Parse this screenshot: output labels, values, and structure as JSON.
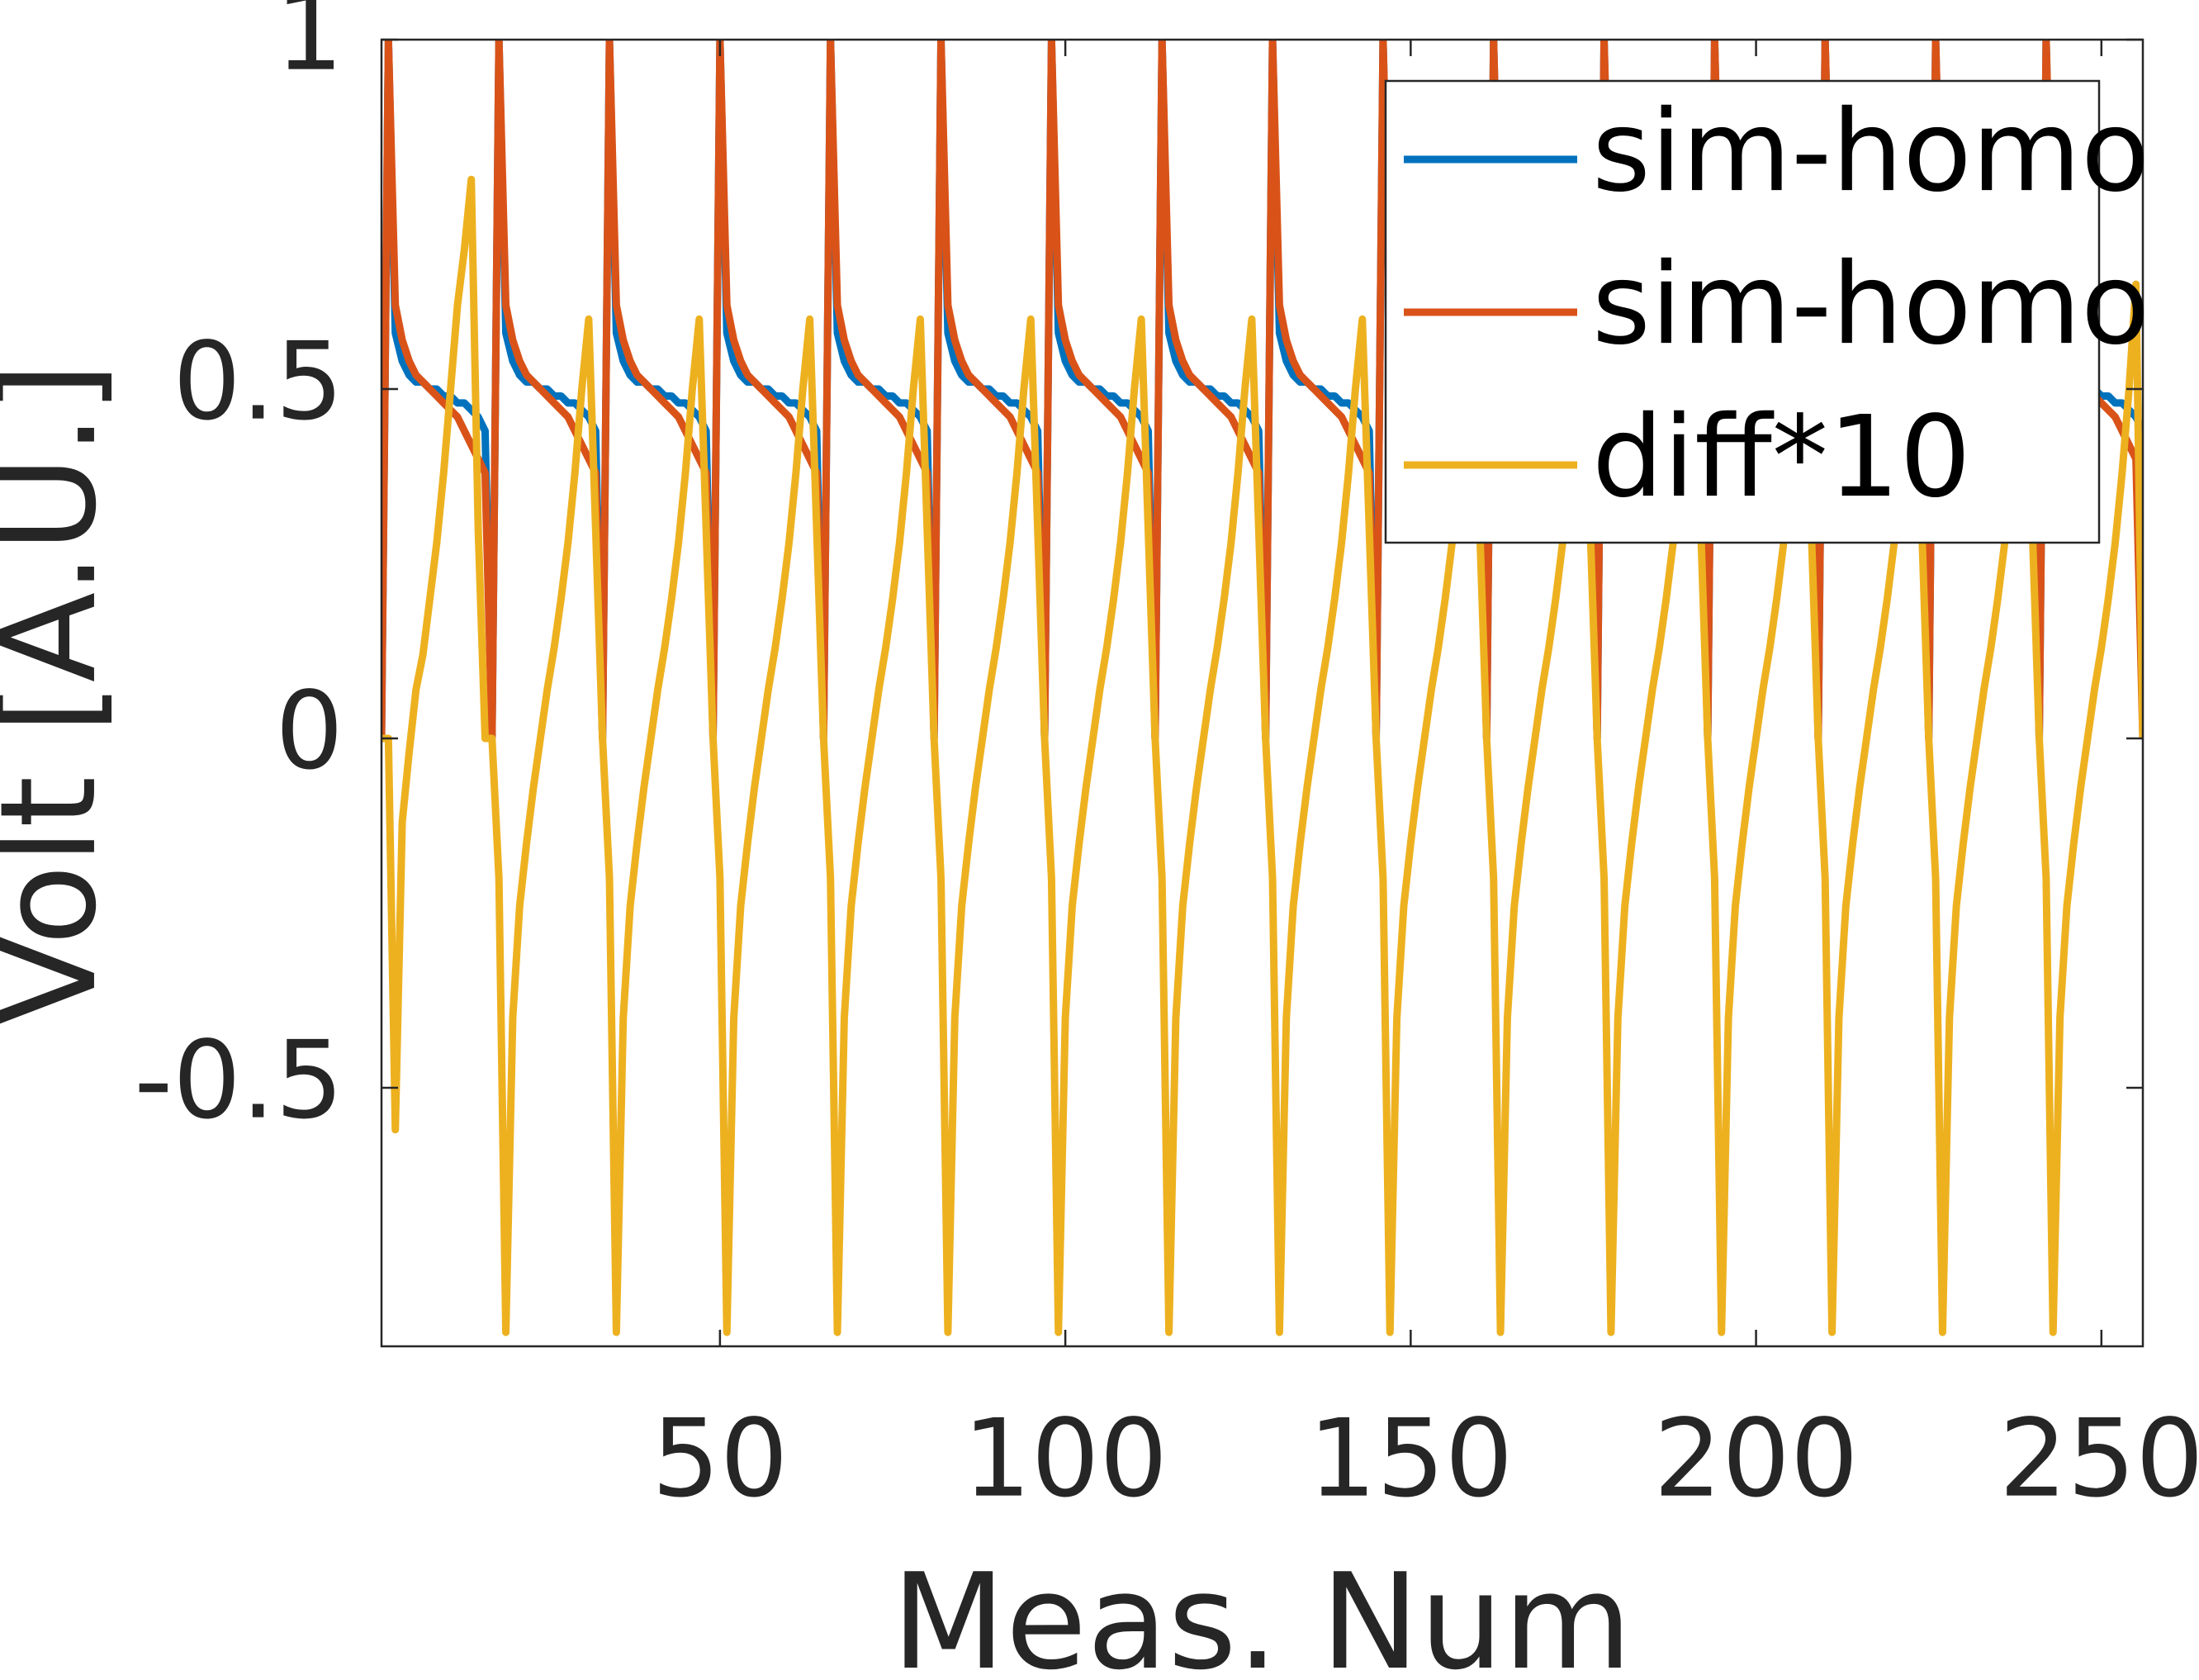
{
  "chart_data": {
    "type": "line",
    "xlabel": "Meas. Num",
    "ylabel": "Volt [A.U.]",
    "xlim": [
      1,
      256
    ],
    "ylim": [
      -0.87,
      1
    ],
    "xticks": [
      50,
      100,
      150,
      200,
      250
    ],
    "yticks": [
      -0.5,
      0,
      0.5,
      1
    ],
    "legend": "top-right",
    "x": [
      1,
      2,
      3,
      4,
      5,
      6,
      7,
      8,
      9,
      10,
      11,
      12,
      13,
      14,
      15,
      16,
      17,
      18,
      19,
      20,
      21,
      22,
      23,
      24,
      25,
      26,
      27,
      28,
      29,
      30,
      31,
      32,
      33,
      34,
      35,
      36,
      37,
      38,
      39,
      40,
      41,
      42,
      43,
      44,
      45,
      46,
      47,
      48,
      49,
      50,
      51,
      52,
      53,
      54,
      55,
      56,
      57,
      58,
      59,
      60,
      61,
      62,
      63,
      64,
      65,
      66,
      67,
      68,
      69,
      70,
      71,
      72,
      73,
      74,
      75,
      76,
      77,
      78,
      79,
      80,
      81,
      82,
      83,
      84,
      85,
      86,
      87,
      88,
      89,
      90,
      91,
      92,
      93,
      94,
      95,
      96,
      97,
      98,
      99,
      100,
      101,
      102,
      103,
      104,
      105,
      106,
      107,
      108,
      109,
      110,
      111,
      112,
      113,
      114,
      115,
      116,
      117,
      118,
      119,
      120,
      121,
      122,
      123,
      124,
      125,
      126,
      127,
      128,
      129,
      130,
      131,
      132,
      133,
      134,
      135,
      136,
      137,
      138,
      139,
      140,
      141,
      142,
      143,
      144,
      145,
      146,
      147,
      148,
      149,
      150,
      151,
      152,
      153,
      154,
      155,
      156,
      157,
      158,
      159,
      160,
      161,
      162,
      163,
      164,
      165,
      166,
      167,
      168,
      169,
      170,
      171,
      172,
      173,
      174,
      175,
      176,
      177,
      178,
      179,
      180,
      181,
      182,
      183,
      184,
      185,
      186,
      187,
      188,
      189,
      190,
      191,
      192,
      193,
      194,
      195,
      196,
      197,
      198,
      199,
      200,
      201,
      202,
      203,
      204,
      205,
      206,
      207,
      208,
      209,
      210,
      211,
      212,
      213,
      214,
      215,
      216,
      217,
      218,
      219,
      220,
      221,
      222,
      223,
      224,
      225,
      226,
      227,
      228,
      229,
      230,
      231,
      232,
      233,
      234,
      235,
      236,
      237,
      238,
      239,
      240,
      241,
      242,
      243,
      244,
      245,
      246,
      247,
      248,
      249,
      250,
      251,
      252,
      253,
      254,
      255,
      256
    ],
    "series": [
      {
        "name": "sim-homo",
        "color": "#0072BD",
        "values": [
          0,
          1,
          0.58,
          0.54,
          0.52,
          0.51,
          0.51,
          0.5,
          0.5,
          0.49,
          0.49,
          0.48,
          0.48,
          0.47,
          0.46,
          0.44,
          0,
          1,
          0.58,
          0.54,
          0.52,
          0.51,
          0.51,
          0.5,
          0.5,
          0.49,
          0.49,
          0.48,
          0.48,
          0.47,
          0.46,
          0.44,
          0,
          1,
          0.58,
          0.54,
          0.52,
          0.51,
          0.51,
          0.5,
          0.5,
          0.49,
          0.49,
          0.48,
          0.48,
          0.47,
          0.46,
          0.44,
          0,
          1,
          0.58,
          0.54,
          0.52,
          0.51,
          0.51,
          0.5,
          0.5,
          0.49,
          0.49,
          0.48,
          0.48,
          0.47,
          0.46,
          0.44,
          0,
          1,
          0.58,
          0.54,
          0.52,
          0.51,
          0.51,
          0.5,
          0.5,
          0.49,
          0.49,
          0.48,
          0.48,
          0.47,
          0.46,
          0.44,
          0,
          1,
          0.58,
          0.54,
          0.52,
          0.51,
          0.51,
          0.5,
          0.5,
          0.49,
          0.49,
          0.48,
          0.48,
          0.47,
          0.46,
          0.44,
          0,
          1,
          0.58,
          0.54,
          0.52,
          0.51,
          0.51,
          0.5,
          0.5,
          0.49,
          0.49,
          0.48,
          0.48,
          0.47,
          0.46,
          0.44,
          0,
          1,
          0.58,
          0.54,
          0.52,
          0.51,
          0.51,
          0.5,
          0.5,
          0.49,
          0.49,
          0.48,
          0.48,
          0.47,
          0.46,
          0.44,
          0,
          1,
          0.58,
          0.54,
          0.52,
          0.51,
          0.51,
          0.5,
          0.5,
          0.49,
          0.49,
          0.48,
          0.48,
          0.47,
          0.46,
          0.44,
          0,
          1,
          0.58,
          0.54,
          0.52,
          0.51,
          0.51,
          0.5,
          0.5,
          0.49,
          0.49,
          0.48,
          0.48,
          0.47,
          0.46,
          0.44,
          0,
          1,
          0.58,
          0.54,
          0.52,
          0.51,
          0.51,
          0.5,
          0.5,
          0.49,
          0.49,
          0.48,
          0.48,
          0.47,
          0.46,
          0.44,
          0,
          1,
          0.58,
          0.54,
          0.52,
          0.51,
          0.51,
          0.5,
          0.5,
          0.49,
          0.49,
          0.48,
          0.48,
          0.47,
          0.46,
          0.44,
          0,
          1,
          0.58,
          0.54,
          0.52,
          0.51,
          0.51,
          0.5,
          0.5,
          0.49,
          0.49,
          0.48,
          0.48,
          0.47,
          0.46,
          0.44,
          0,
          1,
          0.58,
          0.54,
          0.52,
          0.51,
          0.51,
          0.5,
          0.5,
          0.49,
          0.49,
          0.48,
          0.48,
          0.47,
          0.46,
          0.44,
          0,
          1,
          0.58,
          0.54,
          0.52,
          0.51,
          0.51,
          0.5,
          0.5,
          0.49,
          0.49,
          0.48,
          0.48,
          0.47,
          0.46,
          0.44,
          0,
          1,
          0.58,
          0.54,
          0.52,
          0.51,
          0.51,
          0.5,
          0.5,
          0.49,
          0.49,
          0.48,
          0.48,
          0.47,
          0.46,
          0.44
        ]
      },
      {
        "name": "sim-homo",
        "color": "#D95319",
        "values": [
          0,
          1,
          0.62,
          0.57,
          0.54,
          0.52,
          0.51,
          0.5,
          0.49,
          0.48,
          0.47,
          0.46,
          0.44,
          0.42,
          0.4,
          0.38,
          0,
          1,
          0.62,
          0.57,
          0.54,
          0.52,
          0.51,
          0.5,
          0.49,
          0.48,
          0.47,
          0.46,
          0.44,
          0.42,
          0.4,
          0.38,
          0,
          1,
          0.62,
          0.57,
          0.54,
          0.52,
          0.51,
          0.5,
          0.49,
          0.48,
          0.47,
          0.46,
          0.44,
          0.42,
          0.4,
          0.38,
          0,
          1,
          0.62,
          0.57,
          0.54,
          0.52,
          0.51,
          0.5,
          0.49,
          0.48,
          0.47,
          0.46,
          0.44,
          0.42,
          0.4,
          0.38,
          0,
          1,
          0.62,
          0.57,
          0.54,
          0.52,
          0.51,
          0.5,
          0.49,
          0.48,
          0.47,
          0.46,
          0.44,
          0.42,
          0.4,
          0.38,
          0,
          1,
          0.62,
          0.57,
          0.54,
          0.52,
          0.51,
          0.5,
          0.49,
          0.48,
          0.47,
          0.46,
          0.44,
          0.42,
          0.4,
          0.38,
          0,
          1,
          0.62,
          0.57,
          0.54,
          0.52,
          0.51,
          0.5,
          0.49,
          0.48,
          0.47,
          0.46,
          0.44,
          0.42,
          0.4,
          0.38,
          0,
          1,
          0.62,
          0.57,
          0.54,
          0.52,
          0.51,
          0.5,
          0.49,
          0.48,
          0.47,
          0.46,
          0.44,
          0.42,
          0.4,
          0.38,
          0,
          1,
          0.62,
          0.57,
          0.54,
          0.52,
          0.51,
          0.5,
          0.49,
          0.48,
          0.47,
          0.46,
          0.44,
          0.42,
          0.4,
          0.38,
          0,
          1,
          0.62,
          0.57,
          0.54,
          0.52,
          0.51,
          0.5,
          0.49,
          0.48,
          0.47,
          0.46,
          0.44,
          0.42,
          0.4,
          0.38,
          0,
          1,
          0.62,
          0.57,
          0.54,
          0.52,
          0.51,
          0.5,
          0.49,
          0.48,
          0.47,
          0.46,
          0.44,
          0.42,
          0.4,
          0.38,
          0,
          1,
          0.62,
          0.57,
          0.54,
          0.52,
          0.51,
          0.5,
          0.49,
          0.48,
          0.47,
          0.46,
          0.44,
          0.42,
          0.4,
          0.38,
          0,
          1,
          0.62,
          0.57,
          0.54,
          0.52,
          0.51,
          0.5,
          0.49,
          0.48,
          0.47,
          0.46,
          0.44,
          0.42,
          0.4,
          0.38,
          0,
          1,
          0.62,
          0.57,
          0.54,
          0.52,
          0.51,
          0.5,
          0.49,
          0.48,
          0.47,
          0.46,
          0.44,
          0.42,
          0.4,
          0.38,
          0,
          1,
          0.62,
          0.57,
          0.54,
          0.52,
          0.51,
          0.5,
          0.49,
          0.48,
          0.47,
          0.46,
          0.44,
          0.42,
          0.4,
          0.38,
          0,
          1,
          0.62,
          0.57,
          0.54,
          0.52,
          0.51,
          0.5,
          0.49,
          0.48,
          0.47,
          0.46,
          0.44,
          0.42,
          0.4,
          0
        ]
      },
      {
        "name": "diff*10",
        "color": "#EDB120",
        "values": [
          0,
          0,
          -0.56,
          -0.12,
          -0.02,
          0.07,
          0.12,
          0.2,
          0.28,
          0.38,
          0.5,
          0.62,
          0.7,
          0.8,
          0.3,
          0,
          0,
          -0.2,
          -0.85,
          -0.4,
          -0.24,
          -0.15,
          -0.07,
          0,
          0.07,
          0.13,
          0.2,
          0.28,
          0.38,
          0.5,
          0.6,
          0.3,
          0,
          -0.2,
          -0.85,
          -0.4,
          -0.24,
          -0.15,
          -0.07,
          0,
          0.07,
          0.13,
          0.2,
          0.28,
          0.38,
          0.5,
          0.6,
          0.3,
          0,
          -0.2,
          -0.85,
          -0.4,
          -0.24,
          -0.15,
          -0.07,
          0,
          0.07,
          0.13,
          0.2,
          0.28,
          0.38,
          0.5,
          0.6,
          0.3,
          0,
          -0.2,
          -0.85,
          -0.4,
          -0.24,
          -0.15,
          -0.07,
          0,
          0.07,
          0.13,
          0.2,
          0.28,
          0.38,
          0.5,
          0.6,
          0.3,
          0,
          -0.2,
          -0.85,
          -0.4,
          -0.24,
          -0.15,
          -0.07,
          0,
          0.07,
          0.13,
          0.2,
          0.28,
          0.38,
          0.5,
          0.6,
          0.3,
          0,
          -0.2,
          -0.85,
          -0.4,
          -0.24,
          -0.15,
          -0.07,
          0,
          0.07,
          0.13,
          0.2,
          0.28,
          0.38,
          0.5,
          0.6,
          0.3,
          0,
          -0.2,
          -0.85,
          -0.4,
          -0.24,
          -0.15,
          -0.07,
          0,
          0.07,
          0.13,
          0.2,
          0.28,
          0.38,
          0.5,
          0.6,
          0.3,
          0,
          -0.2,
          -0.85,
          -0.4,
          -0.24,
          -0.15,
          -0.07,
          0,
          0.07,
          0.13,
          0.2,
          0.28,
          0.38,
          0.5,
          0.6,
          0.3,
          0,
          -0.2,
          -0.85,
          -0.4,
          -0.24,
          -0.15,
          -0.07,
          0,
          0.07,
          0.13,
          0.2,
          0.28,
          0.38,
          0.5,
          0.6,
          0.3,
          0,
          -0.2,
          -0.85,
          -0.4,
          -0.24,
          -0.15,
          -0.07,
          0,
          0.07,
          0.13,
          0.2,
          0.28,
          0.38,
          0.5,
          0.6,
          0.3,
          0,
          -0.2,
          -0.85,
          -0.4,
          -0.24,
          -0.15,
          -0.07,
          0,
          0.07,
          0.13,
          0.2,
          0.28,
          0.38,
          0.5,
          0.6,
          0.3,
          0,
          -0.2,
          -0.85,
          -0.4,
          -0.24,
          -0.15,
          -0.07,
          0,
          0.07,
          0.13,
          0.2,
          0.28,
          0.38,
          0.5,
          0.6,
          0.3,
          0,
          -0.2,
          -0.85,
          -0.4,
          -0.24,
          -0.15,
          -0.07,
          0,
          0.07,
          0.13,
          0.2,
          0.28,
          0.38,
          0.5,
          0.6,
          0.3,
          0,
          -0.2,
          -0.85,
          -0.4,
          -0.24,
          -0.15,
          -0.07,
          0,
          0.07,
          0.13,
          0.2,
          0.28,
          0.38,
          0.5,
          0.6,
          0.3,
          0,
          -0.2,
          -0.85,
          -0.4,
          -0.24,
          -0.15,
          -0.07,
          0,
          0.07,
          0.13,
          0.2,
          0.28,
          0.38,
          0.5,
          0.65,
          0
        ]
      }
    ]
  }
}
